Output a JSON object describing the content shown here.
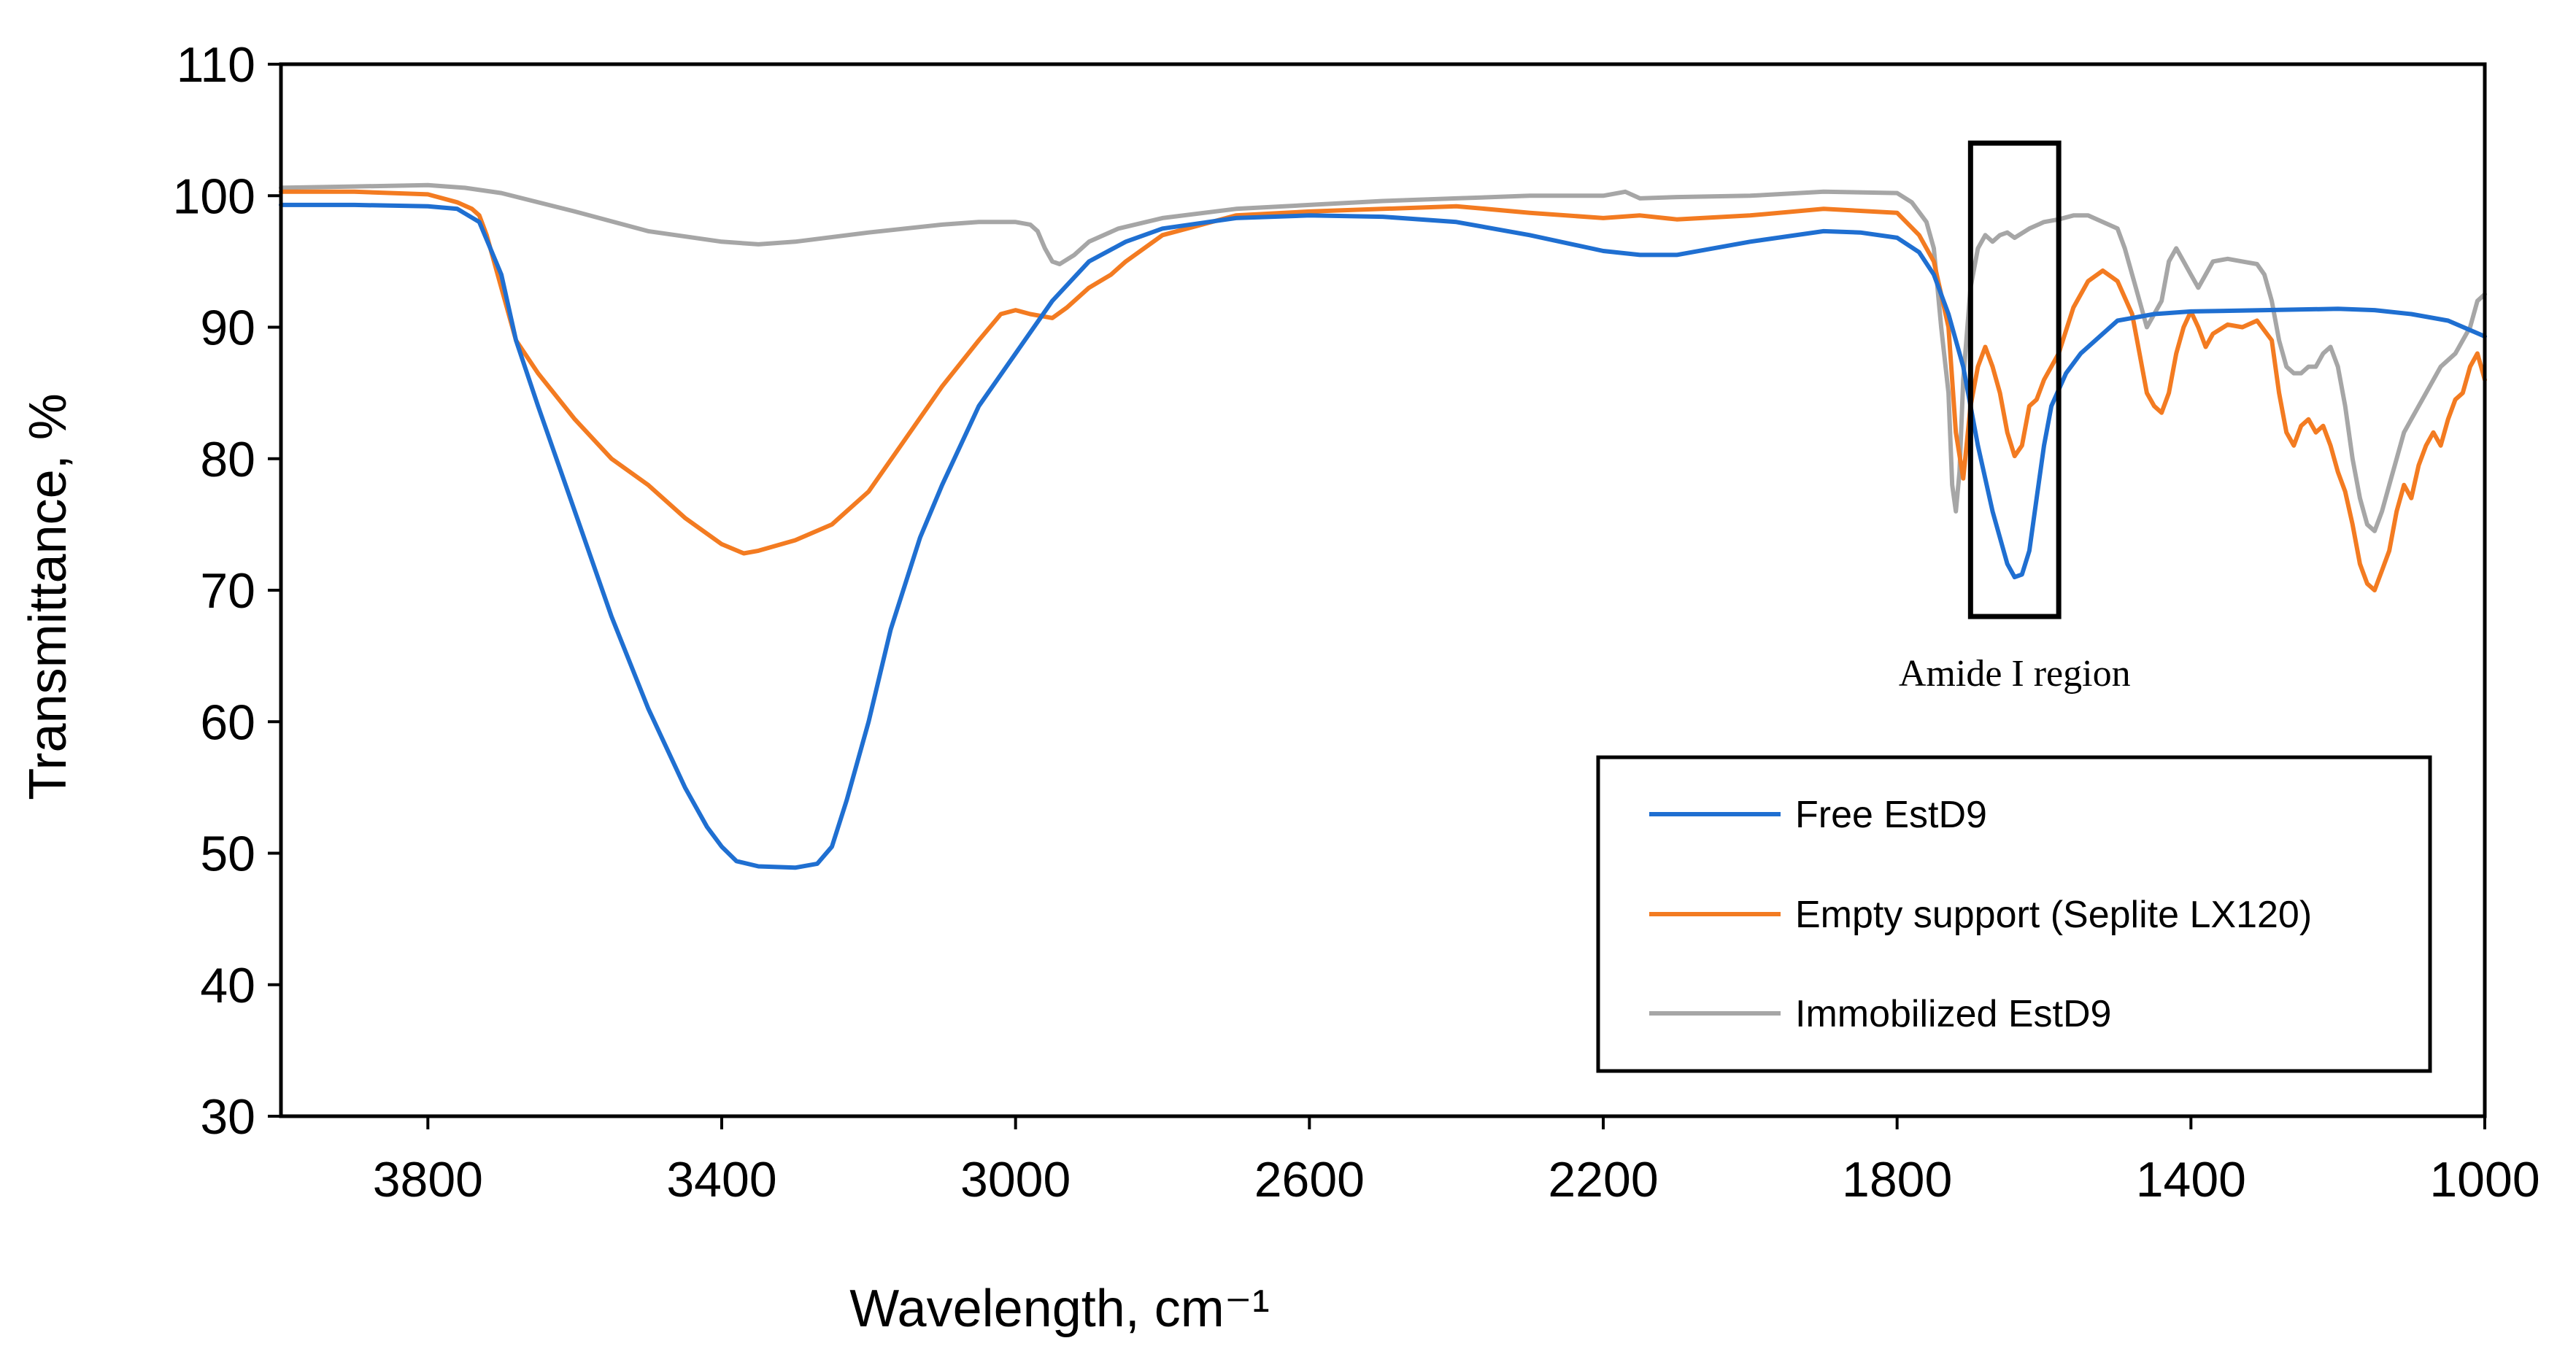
{
  "chart_data": {
    "type": "line",
    "title": "",
    "xlabel": "Wavelength, cm⁻¹",
    "ylabel": "Transmittance, %",
    "xlim": [
      4000,
      1000
    ],
    "ylim": [
      30,
      110
    ],
    "x_reversed": true,
    "xticks": [
      3800,
      3400,
      3000,
      2600,
      2200,
      1800,
      1400,
      1000
    ],
    "yticks": [
      30,
      40,
      50,
      60,
      70,
      80,
      90,
      100,
      110
    ],
    "grid": false,
    "legend_position": "bottom-right",
    "series": [
      {
        "name": "Free EstD9",
        "color": "#1f6fd1",
        "points": [
          [
            4000,
            99.3
          ],
          [
            3900,
            99.3
          ],
          [
            3800,
            99.2
          ],
          [
            3760,
            99
          ],
          [
            3730,
            98
          ],
          [
            3700,
            94
          ],
          [
            3680,
            89
          ],
          [
            3650,
            84
          ],
          [
            3600,
            76
          ],
          [
            3550,
            68
          ],
          [
            3500,
            61
          ],
          [
            3450,
            55
          ],
          [
            3420,
            52
          ],
          [
            3400,
            50.5
          ],
          [
            3380,
            49.4
          ],
          [
            3350,
            49
          ],
          [
            3300,
            48.9
          ],
          [
            3270,
            49.2
          ],
          [
            3250,
            50.5
          ],
          [
            3230,
            54
          ],
          [
            3200,
            60
          ],
          [
            3170,
            67
          ],
          [
            3130,
            74
          ],
          [
            3100,
            78
          ],
          [
            3050,
            84
          ],
          [
            3000,
            88
          ],
          [
            2950,
            92
          ],
          [
            2900,
            95
          ],
          [
            2850,
            96.5
          ],
          [
            2800,
            97.5
          ],
          [
            2700,
            98.3
          ],
          [
            2600,
            98.5
          ],
          [
            2500,
            98.4
          ],
          [
            2400,
            98
          ],
          [
            2300,
            97
          ],
          [
            2200,
            95.8
          ],
          [
            2150,
            95.5
          ],
          [
            2100,
            95.5
          ],
          [
            2000,
            96.5
          ],
          [
            1900,
            97.3
          ],
          [
            1850,
            97.2
          ],
          [
            1800,
            96.8
          ],
          [
            1770,
            95.7
          ],
          [
            1750,
            94
          ],
          [
            1730,
            91
          ],
          [
            1710,
            87
          ],
          [
            1690,
            81
          ],
          [
            1670,
            76
          ],
          [
            1650,
            72
          ],
          [
            1640,
            71
          ],
          [
            1630,
            71.2
          ],
          [
            1620,
            73
          ],
          [
            1610,
            77
          ],
          [
            1600,
            81
          ],
          [
            1590,
            84
          ],
          [
            1570,
            86.5
          ],
          [
            1550,
            88
          ],
          [
            1520,
            89.5
          ],
          [
            1500,
            90.5
          ],
          [
            1450,
            91
          ],
          [
            1400,
            91.2
          ],
          [
            1300,
            91.3
          ],
          [
            1200,
            91.4
          ],
          [
            1150,
            91.3
          ],
          [
            1100,
            91
          ],
          [
            1050,
            90.5
          ],
          [
            1000,
            89.3
          ]
        ]
      },
      {
        "name": "Empty support (Seplite LX120)",
        "color": "#f37b21",
        "points": [
          [
            4000,
            100.3
          ],
          [
            3900,
            100.3
          ],
          [
            3800,
            100.1
          ],
          [
            3760,
            99.5
          ],
          [
            3740,
            99
          ],
          [
            3730,
            98.5
          ],
          [
            3720,
            97
          ],
          [
            3700,
            93
          ],
          [
            3680,
            89
          ],
          [
            3650,
            86.5
          ],
          [
            3600,
            83
          ],
          [
            3550,
            80
          ],
          [
            3500,
            78
          ],
          [
            3450,
            75.5
          ],
          [
            3400,
            73.5
          ],
          [
            3370,
            72.8
          ],
          [
            3350,
            73
          ],
          [
            3300,
            73.8
          ],
          [
            3250,
            75
          ],
          [
            3200,
            77.5
          ],
          [
            3150,
            81.5
          ],
          [
            3100,
            85.5
          ],
          [
            3050,
            89
          ],
          [
            3020,
            91
          ],
          [
            3000,
            91.3
          ],
          [
            2980,
            91
          ],
          [
            2960,
            90.8
          ],
          [
            2950,
            90.7
          ],
          [
            2930,
            91.5
          ],
          [
            2900,
            93
          ],
          [
            2870,
            94
          ],
          [
            2850,
            95
          ],
          [
            2800,
            97
          ],
          [
            2700,
            98.5
          ],
          [
            2600,
            98.8
          ],
          [
            2500,
            99
          ],
          [
            2400,
            99.2
          ],
          [
            2300,
            98.7
          ],
          [
            2200,
            98.3
          ],
          [
            2150,
            98.5
          ],
          [
            2100,
            98.2
          ],
          [
            2000,
            98.5
          ],
          [
            1900,
            99
          ],
          [
            1800,
            98.7
          ],
          [
            1770,
            97
          ],
          [
            1750,
            95
          ],
          [
            1730,
            90
          ],
          [
            1720,
            82
          ],
          [
            1710,
            78.5
          ],
          [
            1700,
            84
          ],
          [
            1690,
            87
          ],
          [
            1680,
            88.5
          ],
          [
            1670,
            87
          ],
          [
            1660,
            85
          ],
          [
            1650,
            82
          ],
          [
            1640,
            80.2
          ],
          [
            1630,
            81
          ],
          [
            1620,
            84
          ],
          [
            1610,
            84.5
          ],
          [
            1600,
            86
          ],
          [
            1580,
            88
          ],
          [
            1560,
            91.5
          ],
          [
            1540,
            93.5
          ],
          [
            1520,
            94.3
          ],
          [
            1500,
            93.5
          ],
          [
            1480,
            91
          ],
          [
            1470,
            88
          ],
          [
            1460,
            85
          ],
          [
            1450,
            84
          ],
          [
            1440,
            83.5
          ],
          [
            1430,
            85
          ],
          [
            1420,
            88
          ],
          [
            1410,
            90
          ],
          [
            1400,
            91.2
          ],
          [
            1390,
            90
          ],
          [
            1380,
            88.5
          ],
          [
            1370,
            89.5
          ],
          [
            1350,
            90.2
          ],
          [
            1330,
            90
          ],
          [
            1310,
            90.5
          ],
          [
            1290,
            89
          ],
          [
            1280,
            85
          ],
          [
            1270,
            82
          ],
          [
            1260,
            81
          ],
          [
            1250,
            82.5
          ],
          [
            1240,
            83
          ],
          [
            1230,
            82
          ],
          [
            1220,
            82.5
          ],
          [
            1210,
            81
          ],
          [
            1200,
            79
          ],
          [
            1190,
            77.5
          ],
          [
            1180,
            75
          ],
          [
            1170,
            72
          ],
          [
            1160,
            70.5
          ],
          [
            1150,
            70
          ],
          [
            1140,
            71.5
          ],
          [
            1130,
            73
          ],
          [
            1120,
            76
          ],
          [
            1110,
            78
          ],
          [
            1100,
            77
          ],
          [
            1090,
            79.5
          ],
          [
            1080,
            81
          ],
          [
            1070,
            82
          ],
          [
            1060,
            81
          ],
          [
            1050,
            83
          ],
          [
            1040,
            84.5
          ],
          [
            1030,
            85
          ],
          [
            1020,
            87
          ],
          [
            1010,
            88
          ],
          [
            1000,
            86
          ]
        ]
      },
      {
        "name": "Immobilized EstD9",
        "color": "#a6a6a6",
        "points": [
          [
            4000,
            100.6
          ],
          [
            3900,
            100.7
          ],
          [
            3800,
            100.8
          ],
          [
            3750,
            100.6
          ],
          [
            3700,
            100.2
          ],
          [
            3600,
            98.8
          ],
          [
            3500,
            97.3
          ],
          [
            3400,
            96.5
          ],
          [
            3350,
            96.3
          ],
          [
            3300,
            96.5
          ],
          [
            3200,
            97.2
          ],
          [
            3100,
            97.8
          ],
          [
            3050,
            98
          ],
          [
            3000,
            98
          ],
          [
            2980,
            97.8
          ],
          [
            2970,
            97.3
          ],
          [
            2960,
            96
          ],
          [
            2950,
            95
          ],
          [
            2940,
            94.8
          ],
          [
            2920,
            95.5
          ],
          [
            2900,
            96.5
          ],
          [
            2860,
            97.5
          ],
          [
            2800,
            98.3
          ],
          [
            2700,
            99
          ],
          [
            2600,
            99.3
          ],
          [
            2500,
            99.6
          ],
          [
            2400,
            99.8
          ],
          [
            2300,
            100
          ],
          [
            2200,
            100
          ],
          [
            2170,
            100.3
          ],
          [
            2150,
            99.8
          ],
          [
            2100,
            99.9
          ],
          [
            2000,
            100
          ],
          [
            1900,
            100.3
          ],
          [
            1800,
            100.2
          ],
          [
            1780,
            99.5
          ],
          [
            1760,
            98
          ],
          [
            1750,
            96
          ],
          [
            1740,
            90
          ],
          [
            1730,
            85
          ],
          [
            1725,
            78
          ],
          [
            1720,
            76
          ],
          [
            1715,
            79
          ],
          [
            1710,
            86
          ],
          [
            1700,
            93
          ],
          [
            1690,
            96
          ],
          [
            1680,
            97
          ],
          [
            1670,
            96.5
          ],
          [
            1660,
            97
          ],
          [
            1650,
            97.2
          ],
          [
            1640,
            96.8
          ],
          [
            1620,
            97.5
          ],
          [
            1600,
            98
          ],
          [
            1580,
            98.2
          ],
          [
            1560,
            98.5
          ],
          [
            1540,
            98.5
          ],
          [
            1520,
            98
          ],
          [
            1500,
            97.5
          ],
          [
            1490,
            96
          ],
          [
            1480,
            94
          ],
          [
            1470,
            92
          ],
          [
            1460,
            90
          ],
          [
            1450,
            91
          ],
          [
            1440,
            92
          ],
          [
            1430,
            95
          ],
          [
            1420,
            96
          ],
          [
            1410,
            95
          ],
          [
            1400,
            94
          ],
          [
            1390,
            93
          ],
          [
            1380,
            94
          ],
          [
            1370,
            95
          ],
          [
            1350,
            95.2
          ],
          [
            1330,
            95
          ],
          [
            1310,
            94.8
          ],
          [
            1300,
            94
          ],
          [
            1290,
            92
          ],
          [
            1280,
            89
          ],
          [
            1270,
            87
          ],
          [
            1260,
            86.5
          ],
          [
            1250,
            86.5
          ],
          [
            1240,
            87
          ],
          [
            1230,
            87
          ],
          [
            1220,
            88
          ],
          [
            1210,
            88.5
          ],
          [
            1200,
            87
          ],
          [
            1190,
            84
          ],
          [
            1180,
            80
          ],
          [
            1170,
            77
          ],
          [
            1160,
            75
          ],
          [
            1150,
            74.5
          ],
          [
            1140,
            76
          ],
          [
            1130,
            78
          ],
          [
            1120,
            80
          ],
          [
            1110,
            82
          ],
          [
            1100,
            83
          ],
          [
            1080,
            85
          ],
          [
            1060,
            87
          ],
          [
            1040,
            88
          ],
          [
            1020,
            90
          ],
          [
            1010,
            92
          ],
          [
            1000,
            92.5
          ]
        ]
      }
    ],
    "annotations": [
      {
        "type": "box",
        "text": "Amide I region",
        "x_from": 1700,
        "x_to": 1580,
        "y_from": 68,
        "y_to": 104
      }
    ]
  }
}
